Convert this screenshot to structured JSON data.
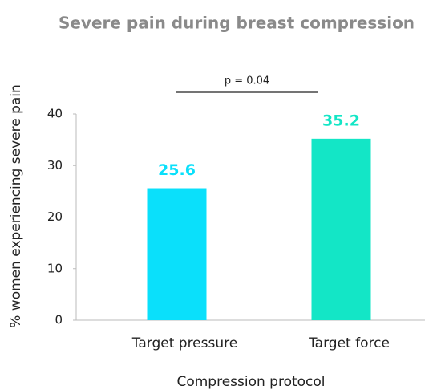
{
  "chart_data": {
    "type": "bar",
    "title": "Severe pain during breast compression",
    "xlabel": "Compression protocol",
    "ylabel": "% women experiencing severe pain",
    "annotation": "p = 0.04",
    "categories": [
      "Target pressure",
      "Target force"
    ],
    "values": [
      25.6,
      35.2
    ],
    "colors": [
      "#0ae0fb",
      "#13e6c6"
    ],
    "ylim": [
      0,
      40
    ],
    "yticks": [
      0,
      10,
      20,
      30,
      40
    ],
    "grid": false
  }
}
